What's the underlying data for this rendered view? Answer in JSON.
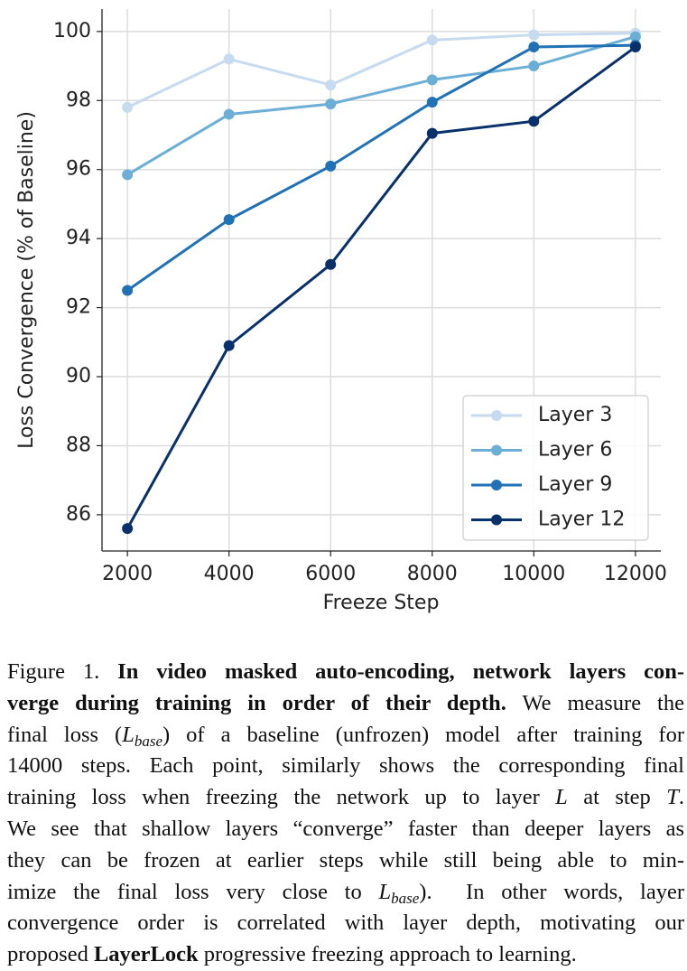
{
  "chart_data": {
    "type": "line",
    "xlabel": "Freeze Step",
    "ylabel": "Loss Convergence (% of Baseline)",
    "x": [
      2000,
      4000,
      6000,
      8000,
      10000,
      12000
    ],
    "xlim": [
      1500,
      12500
    ],
    "xticks": [
      2000,
      4000,
      6000,
      8000,
      10000,
      12000
    ],
    "ylim": [
      84.95,
      100.65
    ],
    "yticks": [
      86,
      88,
      90,
      92,
      94,
      96,
      98,
      100
    ],
    "grid": true,
    "legend": "lower right",
    "series": [
      {
        "name": "Layer 3",
        "color": "#c6dbef",
        "values": [
          97.8,
          99.2,
          98.45,
          99.75,
          99.9,
          99.95
        ]
      },
      {
        "name": "Layer 6",
        "color": "#6baed6",
        "values": [
          95.85,
          97.6,
          97.9,
          98.6,
          99.0,
          99.85
        ]
      },
      {
        "name": "Layer 9",
        "color": "#2171b5",
        "values": [
          92.5,
          94.55,
          96.1,
          97.95,
          99.55,
          99.6
        ]
      },
      {
        "name": "Layer 12",
        "color": "#08306b",
        "values": [
          85.6,
          90.9,
          93.25,
          97.05,
          97.4,
          99.55
        ]
      }
    ]
  },
  "caption": {
    "lines": [
      [
        {
          "text": "Figure 1. "
        },
        {
          "text": "In video masked auto-encoding, network layers con-",
          "style": "b"
        }
      ],
      [
        {
          "text": "verge during training in order of their depth.",
          "style": "b"
        },
        {
          "text": " We measure the"
        }
      ],
      [
        {
          "text": "final loss ("
        },
        {
          "text": "L",
          "style": "i"
        },
        {
          "text": "base",
          "style": "sub"
        },
        {
          "text": ") of a baseline (unfrozen) model after training for"
        }
      ],
      [
        {
          "text": "14000 steps. Each point, similarly shows the corresponding final"
        }
      ],
      [
        {
          "text": "training loss when freezing the network up to layer "
        },
        {
          "text": "L",
          "style": "i"
        },
        {
          "text": " at step "
        },
        {
          "text": "T",
          "style": "i"
        },
        {
          "text": "."
        }
      ],
      [
        {
          "text": "We see that shallow layers “converge” faster than deeper layers as"
        }
      ],
      [
        {
          "text": "they can be frozen at earlier steps while still being able to min-"
        }
      ],
      [
        {
          "text": "imize the final loss very close to "
        },
        {
          "text": "L",
          "style": "i"
        },
        {
          "text": "base",
          "style": "sub"
        },
        {
          "text": ").  In other words, layer"
        }
      ],
      [
        {
          "text": "convergence order is correlated with layer depth, motivating our"
        }
      ],
      [
        {
          "text": "proposed "
        },
        {
          "text": "LayerLock",
          "style": "b"
        },
        {
          "text": " progressive freezing approach to learning."
        }
      ]
    ]
  }
}
